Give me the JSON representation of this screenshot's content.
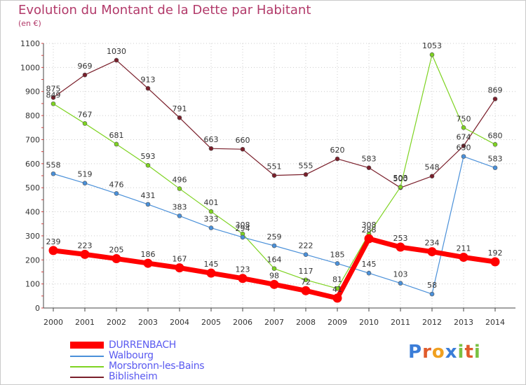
{
  "title": "Evolution du Montant de la Dette par Habitant",
  "subtitle": "(en €)",
  "logo": {
    "text": "Proxiti",
    "letters": [
      "P",
      "r",
      "o",
      "x",
      "i",
      "t",
      "i"
    ],
    "colors": [
      "#3b7dd8",
      "#e05b2b",
      "#f0a020",
      "#3b7dd8",
      "#7ac143",
      "#e05b2b",
      "#7ac143"
    ]
  },
  "chart_data": {
    "type": "line",
    "x": [
      "2000",
      "2001",
      "2002",
      "2003",
      "2004",
      "2005",
      "2006",
      "2007",
      "2008",
      "2009",
      "2010",
      "2011",
      "2012",
      "2013",
      "2014"
    ],
    "ylim": [
      0,
      1100
    ],
    "yticks": [
      "0",
      "100",
      "200",
      "300",
      "400",
      "500",
      "600",
      "700",
      "800",
      "900",
      "1000",
      "1100"
    ],
    "grid": true,
    "series": [
      {
        "name": "DURRENBACH",
        "color": "#ff0000",
        "values": [
          239,
          223,
          205,
          186,
          167,
          145,
          123,
          98,
          72,
          41,
          288,
          253,
          234,
          211,
          192
        ],
        "labels": [
          "239",
          "223",
          "205",
          "186",
          "167",
          "145",
          "123",
          "98",
          "72",
          "41",
          "288",
          "253",
          "234",
          "211",
          "192"
        ]
      },
      {
        "name": "Walbourg",
        "color": "#4a90d9",
        "values": [
          558,
          519,
          476,
          431,
          383,
          333,
          294,
          259,
          222,
          185,
          145,
          103,
          58,
          630,
          583
        ],
        "labels": [
          "558",
          "519",
          "476",
          "431",
          "383",
          "333",
          "294",
          "259",
          "222",
          "185",
          "145",
          "103",
          "58",
          "630",
          "583"
        ]
      },
      {
        "name": "Morsbronn-les-Bains",
        "color": "#7ed321",
        "values": [
          849,
          767,
          681,
          593,
          496,
          401,
          308,
          164,
          117,
          81,
          308,
          503,
          1053,
          750,
          680
        ],
        "labels": [
          "849",
          "767",
          "681",
          "593",
          "496",
          "401",
          "308",
          "164",
          "117",
          "81",
          "308",
          "503",
          "1053",
          "750",
          "680"
        ]
      },
      {
        "name": "Biblisheim",
        "color": "#7a1f2b",
        "values": [
          875,
          969,
          1030,
          913,
          791,
          663,
          660,
          551,
          555,
          620,
          583,
          500,
          548,
          674,
          869
        ],
        "labels": [
          "875",
          "969",
          "1030",
          "913",
          "791",
          "663",
          "660",
          "551",
          "555",
          "620",
          "583",
          "500",
          "548",
          "674",
          "869"
        ]
      }
    ]
  }
}
